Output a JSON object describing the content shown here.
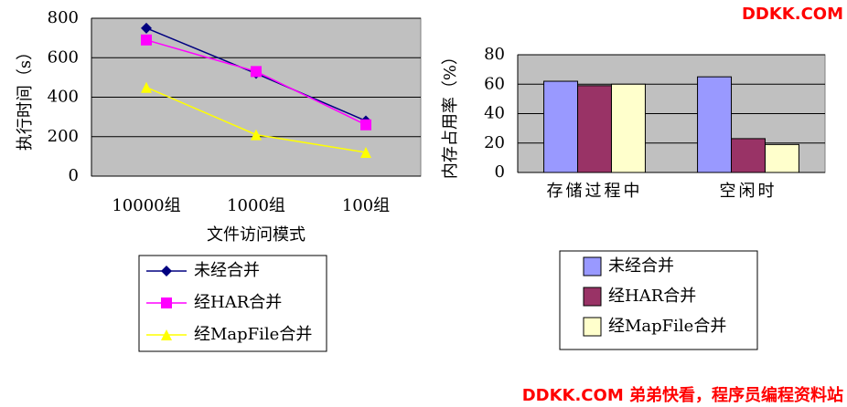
{
  "chart_data": [
    {
      "type": "line",
      "y_label": "执行时间（s）",
      "x_label": "文件访问模式",
      "categories": [
        "10000组",
        "1000组",
        "100组"
      ],
      "series": [
        {
          "name": "未经合并",
          "color": "#000080",
          "marker": "diamond",
          "values": [
            750,
            520,
            280
          ]
        },
        {
          "name": "经HAR合并",
          "color": "#ff00ff",
          "marker": "square",
          "values": [
            690,
            530,
            260
          ]
        },
        {
          "name": "经MapFile合并",
          "color": "#ffff00",
          "marker": "triangle",
          "values": [
            450,
            210,
            120
          ]
        }
      ],
      "ylim": [
        0,
        800
      ],
      "yticks": [
        0,
        200,
        400,
        600,
        800
      ],
      "grid": true,
      "legend": "bottom"
    },
    {
      "type": "bar",
      "y_label": "内存占用率（%）",
      "categories": [
        "存储过程中",
        "空闲时"
      ],
      "series": [
        {
          "name": "未经合并",
          "color": "#9999ff",
          "values": [
            62,
            65
          ]
        },
        {
          "name": "经HAR合并",
          "color": "#993366",
          "values": [
            59,
            23
          ]
        },
        {
          "name": "经MapFile合并",
          "color": "#ffffcc",
          "values": [
            60,
            19
          ]
        }
      ],
      "ylim": [
        0,
        80
      ],
      "yticks": [
        0,
        20,
        40,
        60,
        80
      ],
      "grid": true,
      "legend": "bottom"
    }
  ],
  "watermark": {
    "top": "DDKK.COM",
    "bottom": "DDKK.COM 弟弟快看，程序员编程资料站"
  }
}
